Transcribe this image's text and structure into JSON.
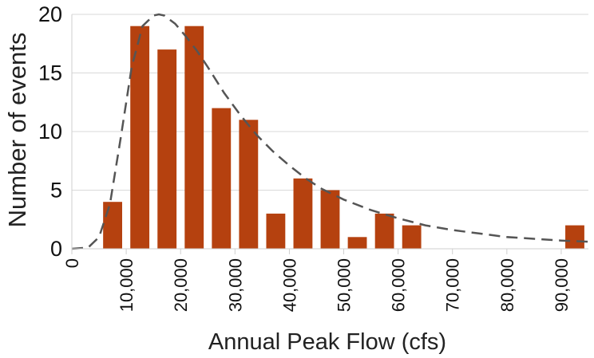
{
  "chart_data": {
    "type": "bar",
    "title": "",
    "xlabel": "Annual Peak Flow (cfs)",
    "ylabel": "Number of events",
    "xlim": [
      0,
      95000
    ],
    "ylim": [
      0,
      20
    ],
    "grid": "horizontal",
    "legend": "none",
    "bar_width": 3500,
    "x_ticks": [
      0,
      10000,
      20000,
      30000,
      40000,
      50000,
      60000,
      70000,
      80000,
      90000
    ],
    "x_tick_labels": [
      "0",
      "10,000",
      "20,000",
      "30,000",
      "40,000",
      "50,000",
      "60,000",
      "70,000",
      "80,000",
      "90,000"
    ],
    "y_ticks": [
      0,
      5,
      10,
      15,
      20
    ],
    "y_tick_labels": [
      "0",
      "5",
      "10",
      "15",
      "20"
    ],
    "bars": {
      "x": [
        7500,
        12500,
        17500,
        22500,
        27500,
        32500,
        37500,
        42500,
        47500,
        52500,
        57500,
        62500,
        92500
      ],
      "values": [
        4,
        19,
        17,
        19,
        12,
        11,
        3,
        6,
        5,
        1,
        3,
        2,
        2
      ],
      "color": "#b5410f"
    },
    "fitted_curve": {
      "style": "dashed",
      "color": "#555555",
      "x": [
        0,
        3000,
        5000,
        7000,
        9000,
        11000,
        13000,
        15000,
        16000,
        17000,
        19000,
        21000,
        23000,
        25000,
        28000,
        31000,
        34000,
        37000,
        40000,
        43000,
        46000,
        50000,
        55000,
        60000,
        65000,
        70000,
        75000,
        80000,
        85000,
        90000,
        95000
      ],
      "y": [
        0,
        0.1,
        1.0,
        3.8,
        9.5,
        15.5,
        19.0,
        19.9,
        20.0,
        19.9,
        19.2,
        18.1,
        16.9,
        15.5,
        13.3,
        11.4,
        9.7,
        8.3,
        7.1,
        6.0,
        5.1,
        4.2,
        3.3,
        2.6,
        2.0,
        1.6,
        1.3,
        1.0,
        0.85,
        0.7,
        0.6
      ]
    }
  }
}
